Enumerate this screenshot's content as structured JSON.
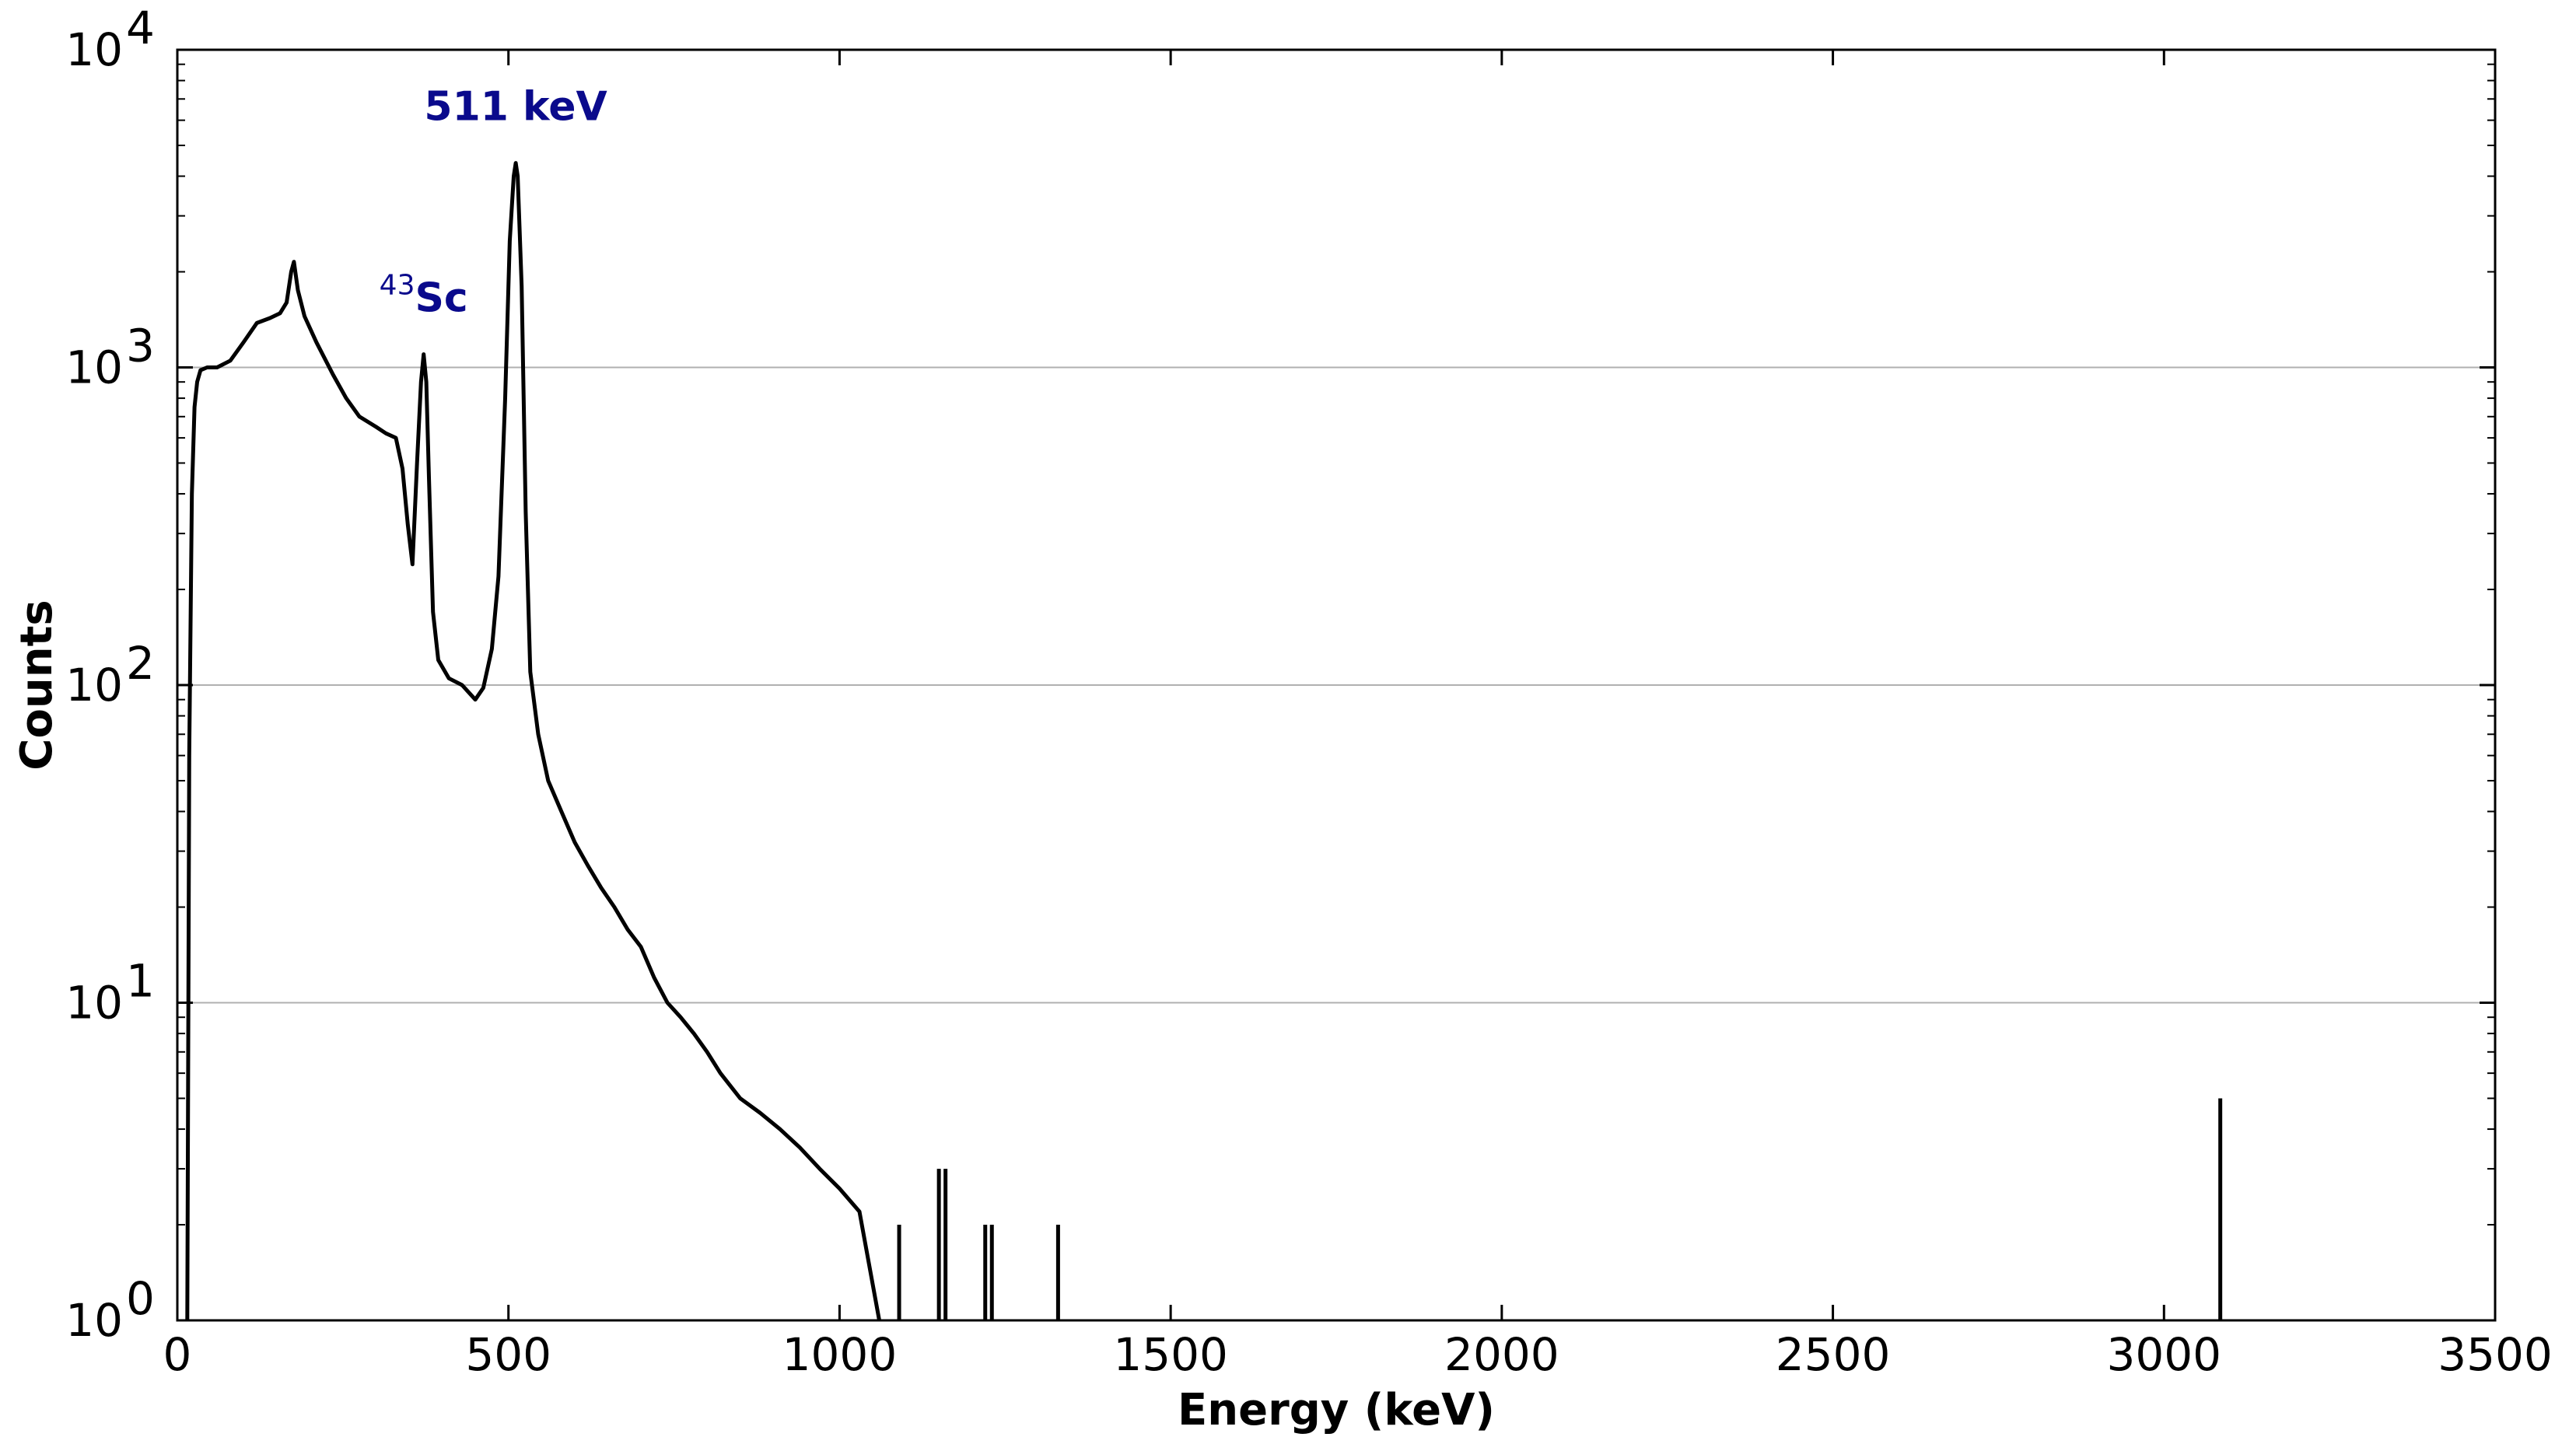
{
  "chart_data": {
    "type": "line",
    "xlabel": "Energy (keV)",
    "ylabel": "Counts",
    "xlim": [
      0,
      3500
    ],
    "ylim": [
      1,
      10000
    ],
    "y_scale": "log",
    "x_ticks": [
      {
        "value": 0,
        "label": "0"
      },
      {
        "value": 500,
        "label": "500"
      },
      {
        "value": 1000,
        "label": "1000"
      },
      {
        "value": 1500,
        "label": "1500"
      },
      {
        "value": 2000,
        "label": "2000"
      },
      {
        "value": 2500,
        "label": "2500"
      },
      {
        "value": 3000,
        "label": "3000"
      },
      {
        "value": 3500,
        "label": "3500"
      }
    ],
    "y_ticks": [
      {
        "value": 1,
        "base": "10",
        "exp": "0"
      },
      {
        "value": 10,
        "base": "10",
        "exp": "1"
      },
      {
        "value": 100,
        "base": "10",
        "exp": "2"
      },
      {
        "value": 1000,
        "base": "10",
        "exp": "3"
      },
      {
        "value": 10000,
        "base": "10",
        "exp": "4"
      }
    ],
    "grid": "horizontal major lines",
    "line_color": "#000000",
    "annotation_color": "#0a0a8c",
    "annotations": [
      {
        "text": "511 keV",
        "x": 511,
        "y": 6000
      },
      {
        "sup": "43",
        "text": "Sc",
        "x": 372,
        "y": 1500
      }
    ],
    "series": [
      {
        "values": [
          [
            15,
            1
          ],
          [
            18,
            60
          ],
          [
            22,
            400
          ],
          [
            26,
            750
          ],
          [
            30,
            900
          ],
          [
            35,
            980
          ],
          [
            45,
            1000
          ],
          [
            60,
            1000
          ],
          [
            80,
            1050
          ],
          [
            100,
            1200
          ],
          [
            120,
            1380
          ],
          [
            140,
            1430
          ],
          [
            155,
            1480
          ],
          [
            165,
            1600
          ],
          [
            172,
            2000
          ],
          [
            176,
            2150
          ],
          [
            182,
            1750
          ],
          [
            192,
            1450
          ],
          [
            210,
            1200
          ],
          [
            235,
            950
          ],
          [
            255,
            800
          ],
          [
            275,
            700
          ],
          [
            300,
            650
          ],
          [
            315,
            620
          ],
          [
            330,
            600
          ],
          [
            340,
            480
          ],
          [
            348,
            320
          ],
          [
            355,
            240
          ],
          [
            362,
            500
          ],
          [
            368,
            900
          ],
          [
            372,
            1100
          ],
          [
            376,
            900
          ],
          [
            380,
            450
          ],
          [
            386,
            170
          ],
          [
            394,
            120
          ],
          [
            410,
            105
          ],
          [
            430,
            100
          ],
          [
            450,
            90
          ],
          [
            462,
            98
          ],
          [
            475,
            130
          ],
          [
            485,
            220
          ],
          [
            495,
            800
          ],
          [
            502,
            2500
          ],
          [
            508,
            4000
          ],
          [
            511,
            4400
          ],
          [
            514,
            4000
          ],
          [
            520,
            1800
          ],
          [
            526,
            350
          ],
          [
            533,
            110
          ],
          [
            545,
            70
          ],
          [
            560,
            50
          ],
          [
            580,
            40
          ],
          [
            600,
            32
          ],
          [
            620,
            27
          ],
          [
            640,
            23
          ],
          [
            660,
            20
          ],
          [
            680,
            17
          ],
          [
            700,
            15
          ],
          [
            720,
            12
          ],
          [
            740,
            10
          ],
          [
            760,
            9
          ],
          [
            780,
            8
          ],
          [
            800,
            7
          ],
          [
            820,
            6
          ],
          [
            850,
            5
          ],
          [
            880,
            4.5
          ],
          [
            910,
            4
          ],
          [
            940,
            3.5
          ],
          [
            970,
            3
          ],
          [
            1000,
            2.6
          ],
          [
            1030,
            2.2
          ],
          [
            1060,
            1
          ]
        ]
      }
    ],
    "spikes": [
      [
        1090,
        2
      ],
      [
        1150,
        3
      ],
      [
        1160,
        3
      ],
      [
        1220,
        2
      ],
      [
        1230,
        2
      ],
      [
        1330,
        2
      ],
      [
        3085,
        5
      ]
    ]
  }
}
